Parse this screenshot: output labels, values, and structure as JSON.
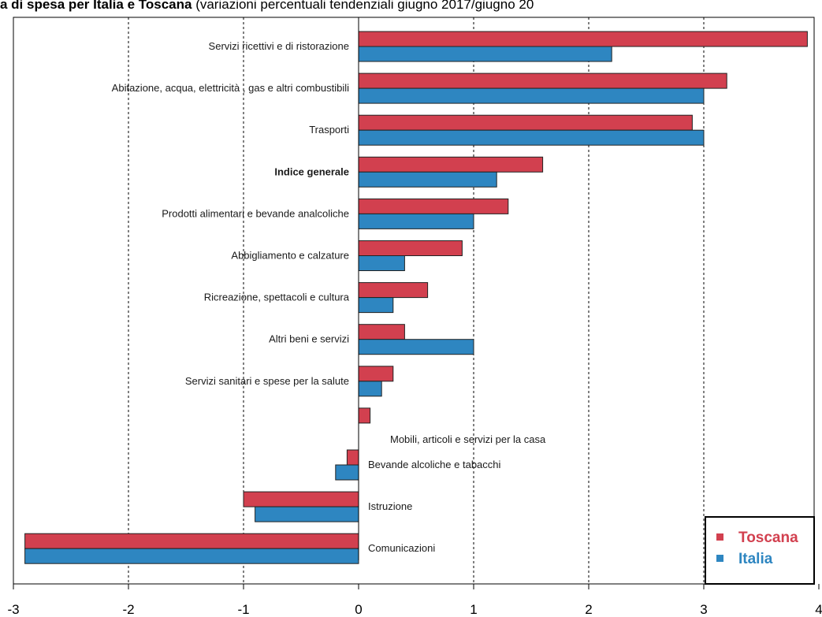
{
  "chart_data": {
    "type": "bar",
    "orientation": "horizontal",
    "title_bold": "a di spesa per Italia e Toscana",
    "title_rest": " (variazioni percentuali tendenziali giugno 2017/giugno 20",
    "categories": [
      "Servizi ricettivi e di ristorazione",
      "Abitazione, acqua, elettricità , gas e altri combustibili",
      "Trasporti",
      "Indice generale",
      "Prodotti alimentari e bevande analcoliche",
      "Abbigliamento e calzature",
      "Ricreazione, spettacoli e cultura",
      "Altri beni e servizi",
      "Servizi sanitari e spese per la salute",
      "Mobili, articoli e servizi per la casa",
      "Bevande alcoliche e tabacchi",
      "Istruzione",
      "Comunicazioni"
    ],
    "bold_category": "Indice generale",
    "series": [
      {
        "name": "Toscana",
        "color": "#d2404f",
        "values": [
          3.9,
          3.2,
          2.9,
          1.6,
          1.3,
          0.9,
          0.6,
          0.4,
          0.3,
          0.1,
          -0.1,
          -1.0,
          -2.9
        ]
      },
      {
        "name": "Italia",
        "color": "#2e86c1",
        "values": [
          2.2,
          3.0,
          3.0,
          1.2,
          1.0,
          0.4,
          0.3,
          1.0,
          0.2,
          0.0,
          -0.2,
          -0.9,
          -2.9
        ]
      }
    ],
    "xlim": [
      -3,
      4
    ],
    "xticks": [
      "-3",
      "-2",
      "-1",
      "0",
      "1",
      "2",
      "3",
      "4"
    ],
    "grid": "vertical dotted",
    "legend_position": "bottom-right"
  }
}
